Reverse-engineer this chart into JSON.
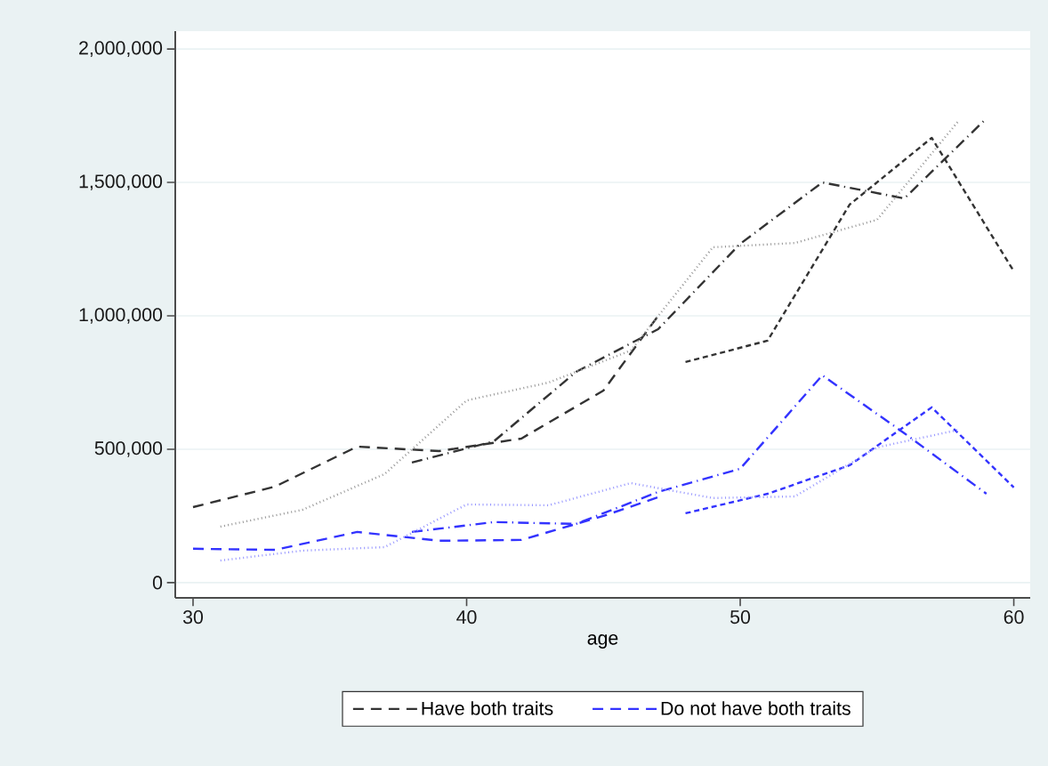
{
  "chart_data": {
    "type": "line",
    "xlabel": "age",
    "xlim": [
      29.35,
      60.6
    ],
    "xticks": [
      30,
      40,
      50,
      60
    ],
    "ylim": [
      -57000,
      2067000
    ],
    "yticks": [
      {
        "value": 0,
        "label": "0"
      },
      {
        "value": 500000,
        "label": "500,000"
      },
      {
        "value": 1000000,
        "label": "1,000,000"
      },
      {
        "value": 1500000,
        "label": "1,500,000"
      },
      {
        "value": 2000000,
        "label": "2,000,000"
      }
    ],
    "grid": "y",
    "legend": "bottom",
    "marker": "none",
    "series": [
      {
        "name": "Have both traits",
        "color": "#333333",
        "line_style": "longdash",
        "x": [
          30,
          33,
          36,
          39,
          42,
          45,
          47
        ],
        "values": [
          283000,
          360000,
          510000,
          493000,
          540000,
          720000,
          1000000
        ]
      },
      {
        "color": "#333333",
        "line_style": "dashdot",
        "x": [
          38,
          41,
          44,
          47,
          50,
          53,
          56,
          59
        ],
        "values": [
          450000,
          530000,
          790000,
          950000,
          1270000,
          1500000,
          1440000,
          1740000
        ]
      },
      {
        "color": "#333333",
        "line_style": "dashed",
        "x": [
          48,
          51,
          54,
          57,
          60
        ],
        "values": [
          827000,
          907000,
          1417000,
          1667000,
          1167000
        ]
      },
      {
        "color": "#999999",
        "line_style": "dotted",
        "x": [
          31,
          34,
          37,
          40,
          43,
          46,
          49,
          52,
          55,
          58
        ],
        "values": [
          210000,
          273000,
          407000,
          683000,
          750000,
          870000,
          1257000,
          1273000,
          1360000,
          1733000
        ]
      },
      {
        "name": "Do not have both traits",
        "color": "#3333ff",
        "line_style": "longdash",
        "x": [
          30,
          33,
          36,
          39,
          42,
          45,
          47
        ],
        "values": [
          127000,
          123000,
          190000,
          157000,
          160000,
          250000,
          320000
        ]
      },
      {
        "color": "#3333ff",
        "line_style": "dashdot",
        "x": [
          38,
          41,
          44,
          47,
          50,
          53,
          56,
          59
        ],
        "values": [
          190000,
          227000,
          220000,
          340000,
          427000,
          777000,
          560000,
          333000
        ]
      },
      {
        "color": "#3333ff",
        "line_style": "dashed",
        "x": [
          48,
          51,
          54,
          57,
          60
        ],
        "values": [
          260000,
          333000,
          440000,
          657000,
          357000
        ]
      },
      {
        "color": "#9999ff",
        "line_style": "dotted",
        "x": [
          31,
          34,
          37,
          40,
          43,
          46,
          49,
          52,
          55,
          58
        ],
        "values": [
          83000,
          120000,
          133000,
          293000,
          290000,
          373000,
          317000,
          323000,
          507000,
          573000
        ]
      }
    ]
  }
}
